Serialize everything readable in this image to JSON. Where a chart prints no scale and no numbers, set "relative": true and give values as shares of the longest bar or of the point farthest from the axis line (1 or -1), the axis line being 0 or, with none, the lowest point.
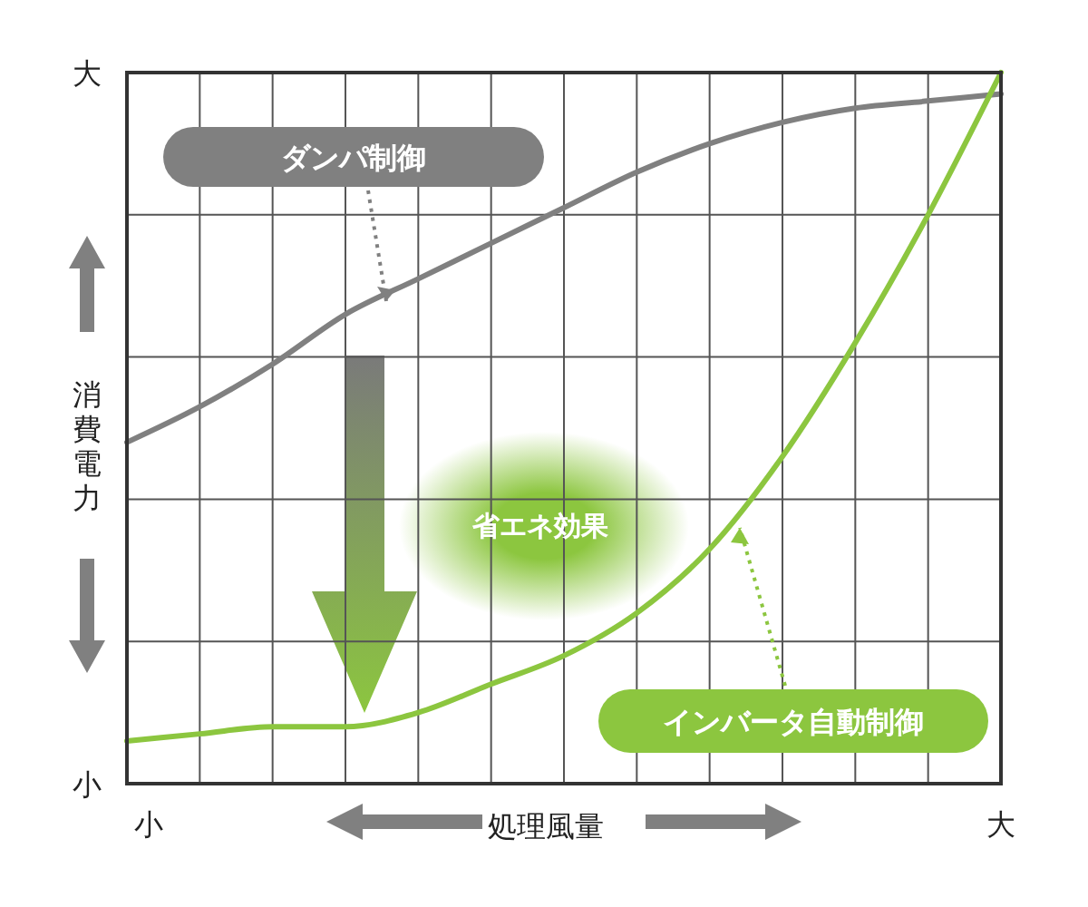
{
  "chart_data": {
    "type": "line",
    "relative": true,
    "xlabel": "処理風量",
    "ylabel": "消費電力",
    "categories": [
      null,
      null,
      null,
      null,
      null,
      null,
      null,
      null,
      null,
      null,
      null,
      null,
      null
    ],
    "series": [
      {
        "name": "ダンパ制御",
        "color": "#808080",
        "values": [
          0.48,
          0.53,
          0.59,
          0.66,
          0.71,
          0.76,
          0.81,
          0.86,
          0.9,
          0.93,
          0.95,
          0.96,
          0.97
        ]
      },
      {
        "name": "インバータ自動制御",
        "color": "#8cc63f",
        "values": [
          0.06,
          0.07,
          0.08,
          0.08,
          0.1,
          0.14,
          0.18,
          0.24,
          0.33,
          0.46,
          0.62,
          0.8,
          1
        ]
      }
    ],
    "annotations": [
      "大",
      "小",
      "小",
      "大",
      "省エネ効果"
    ],
    "grid": true,
    "marker": "none",
    "line_style": "solid"
  }
}
